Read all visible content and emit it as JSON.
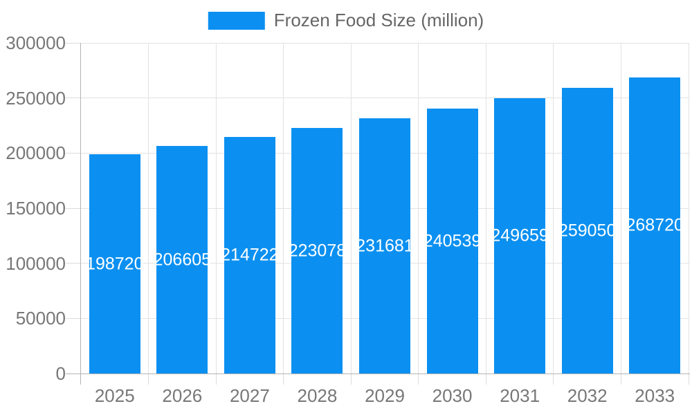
{
  "legend": {
    "label": "Frozen Food Size (million)"
  },
  "colors": {
    "bar": "#0b90f1",
    "grid": "#e2e2e2",
    "axis": "#b3b3b3",
    "tick_text": "#777777",
    "legend_text": "#666666",
    "value_label": "#ffffff",
    "background": "#ffffff"
  },
  "chart_data": {
    "type": "bar",
    "title": "",
    "xlabel": "",
    "ylabel": "",
    "series_name": "Frozen Food Size (million)",
    "categories": [
      "2025",
      "2026",
      "2027",
      "2028",
      "2029",
      "2030",
      "2031",
      "2032",
      "2033"
    ],
    "values": [
      198720,
      206605,
      214722,
      223078,
      231681,
      240539,
      249659,
      259050,
      268720
    ],
    "ylim": [
      0,
      300000
    ],
    "yticks": [
      0,
      50000,
      100000,
      150000,
      200000,
      250000,
      300000
    ],
    "grid": true,
    "legend_position": "top-center",
    "value_label_position": "inside-center",
    "value_label_color": "#ffffff"
  }
}
